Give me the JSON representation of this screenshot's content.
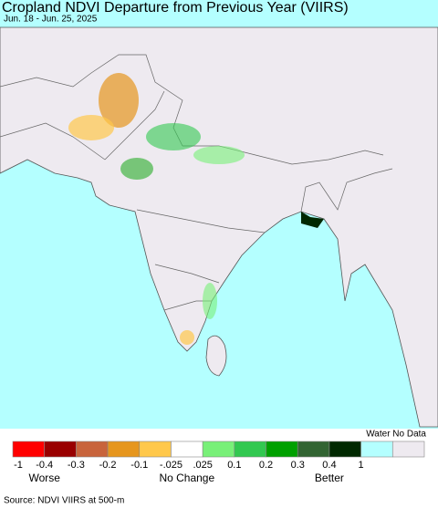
{
  "title": "Cropland NDVI Departure from Previous Year (VIIRS)",
  "subtitle": "Jun. 18 - Jun. 25, 2025",
  "legend": {
    "note": "Water No Data",
    "colors": [
      "#ff0000",
      "#990000",
      "#c8643c",
      "#e6961e",
      "#ffc84b",
      "#ffffff",
      "#78f078",
      "#32c850",
      "#00a000",
      "#326432",
      "#002800",
      "#b4ffff",
      "#eeeaf0"
    ],
    "tick_labels": [
      "-1",
      "-0.4",
      "-0.3",
      "-0.2",
      "-0.1",
      "-.025",
      ".025",
      "0.1",
      "0.2",
      "0.3",
      "0.4",
      "1"
    ],
    "captions": [
      "Worse",
      "No Change",
      "Better"
    ]
  },
  "source": "Source: NDVI VIIRS at 500-m"
}
